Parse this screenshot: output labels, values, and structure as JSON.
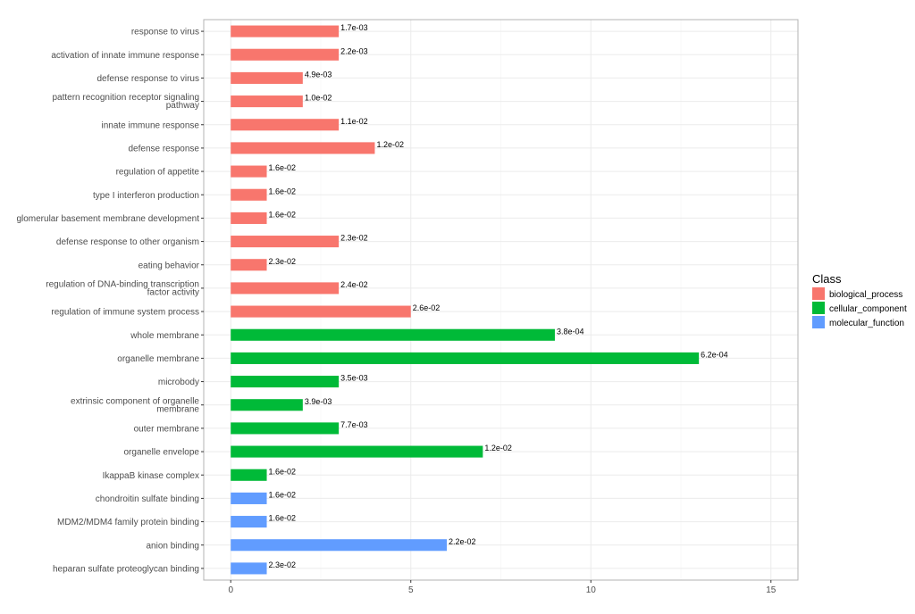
{
  "chart_data": {
    "type": "bar",
    "orientation": "horizontal",
    "title": "",
    "xlabel": "",
    "ylabel": "",
    "xlim": [
      -0.75,
      15.75
    ],
    "xticks": [
      0,
      5,
      10,
      15
    ],
    "grid": true,
    "legend": {
      "title": "Class",
      "placement": "right",
      "entries": [
        {
          "name": "biological_process",
          "color": "#F8766D"
        },
        {
          "name": "cellular_component",
          "color": "#00BA38"
        },
        {
          "name": "molecular_function",
          "color": "#619CFF"
        }
      ]
    },
    "bars": [
      {
        "label": "response to virus",
        "value": 3,
        "class": "biological_process",
        "annotation": "1.7e-03"
      },
      {
        "label": "activation of innate immune response",
        "value": 3,
        "class": "biological_process",
        "annotation": "2.2e-03"
      },
      {
        "label": "defense response to virus",
        "value": 2,
        "class": "biological_process",
        "annotation": "4.9e-03"
      },
      {
        "label": "pattern recognition receptor signaling\npathway",
        "value": 2,
        "class": "biological_process",
        "annotation": "1.0e-02"
      },
      {
        "label": "innate immune response",
        "value": 3,
        "class": "biological_process",
        "annotation": "1.1e-02"
      },
      {
        "label": "defense response",
        "value": 4,
        "class": "biological_process",
        "annotation": "1.2e-02"
      },
      {
        "label": "regulation of appetite",
        "value": 1,
        "class": "biological_process",
        "annotation": "1.6e-02"
      },
      {
        "label": "type I interferon production",
        "value": 1,
        "class": "biological_process",
        "annotation": "1.6e-02"
      },
      {
        "label": "glomerular basement membrane development",
        "value": 1,
        "class": "biological_process",
        "annotation": "1.6e-02"
      },
      {
        "label": "defense response to other organism",
        "value": 3,
        "class": "biological_process",
        "annotation": "2.3e-02"
      },
      {
        "label": "eating behavior",
        "value": 1,
        "class": "biological_process",
        "annotation": "2.3e-02"
      },
      {
        "label": "regulation of DNA-binding transcription\nfactor activity",
        "value": 3,
        "class": "biological_process",
        "annotation": "2.4e-02"
      },
      {
        "label": "regulation of immune system process",
        "value": 5,
        "class": "biological_process",
        "annotation": "2.6e-02"
      },
      {
        "label": "whole membrane",
        "value": 9,
        "class": "cellular_component",
        "annotation": "3.8e-04"
      },
      {
        "label": "organelle membrane",
        "value": 13,
        "class": "cellular_component",
        "annotation": "6.2e-04"
      },
      {
        "label": "microbody",
        "value": 3,
        "class": "cellular_component",
        "annotation": "3.5e-03"
      },
      {
        "label": "extrinsic component of organelle\nmembrane",
        "value": 2,
        "class": "cellular_component",
        "annotation": "3.9e-03"
      },
      {
        "label": "outer membrane",
        "value": 3,
        "class": "cellular_component",
        "annotation": "7.7e-03"
      },
      {
        "label": "organelle envelope",
        "value": 7,
        "class": "cellular_component",
        "annotation": "1.2e-02"
      },
      {
        "label": "IkappaB kinase complex",
        "value": 1,
        "class": "cellular_component",
        "annotation": "1.6e-02"
      },
      {
        "label": "chondroitin sulfate binding",
        "value": 1,
        "class": "molecular_function",
        "annotation": "1.6e-02"
      },
      {
        "label": "MDM2/MDM4 family protein binding",
        "value": 1,
        "class": "molecular_function",
        "annotation": "1.6e-02"
      },
      {
        "label": "anion binding",
        "value": 6,
        "class": "molecular_function",
        "annotation": "2.2e-02"
      },
      {
        "label": "heparan sulfate proteoglycan binding",
        "value": 1,
        "class": "molecular_function",
        "annotation": "2.3e-02"
      }
    ]
  }
}
